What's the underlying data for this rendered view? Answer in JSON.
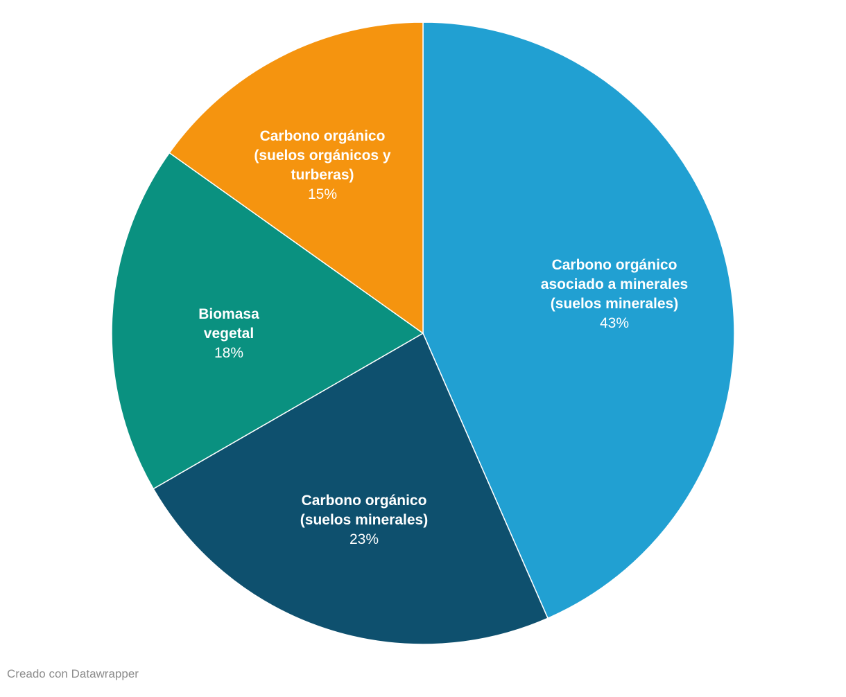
{
  "chart_data": {
    "type": "pie",
    "direction": "clockwise",
    "start_angle_deg": 0,
    "label_color": "#ffffff",
    "slices": [
      {
        "label": "Carbono orgánico asociado a minerales (suelos minerales)",
        "label_lines": [
          "Carbono orgánico",
          "asociado a minerales",
          "(suelos minerales)"
        ],
        "value": 43,
        "pct_label": "43%",
        "color": "#21a0d2"
      },
      {
        "label": "Carbono orgánico (suelos minerales)",
        "label_lines": [
          "Carbono orgánico",
          "(suelos minerales)"
        ],
        "value": 23,
        "pct_label": "23%",
        "color": "#0e506e"
      },
      {
        "label": "Biomasa vegetal",
        "label_lines": [
          "Biomasa",
          "vegetal"
        ],
        "value": 18,
        "pct_label": "18%",
        "color": "#0a9180"
      },
      {
        "label": "Carbono orgánico (suelos orgánicos y turberas)",
        "label_lines": [
          "Carbono orgánico",
          "(suelos orgánicos y",
          "turberas)"
        ],
        "value": 15,
        "pct_label": "15%",
        "color": "#f5940f"
      }
    ]
  },
  "footer": {
    "credit": "Creado con Datawrapper"
  }
}
